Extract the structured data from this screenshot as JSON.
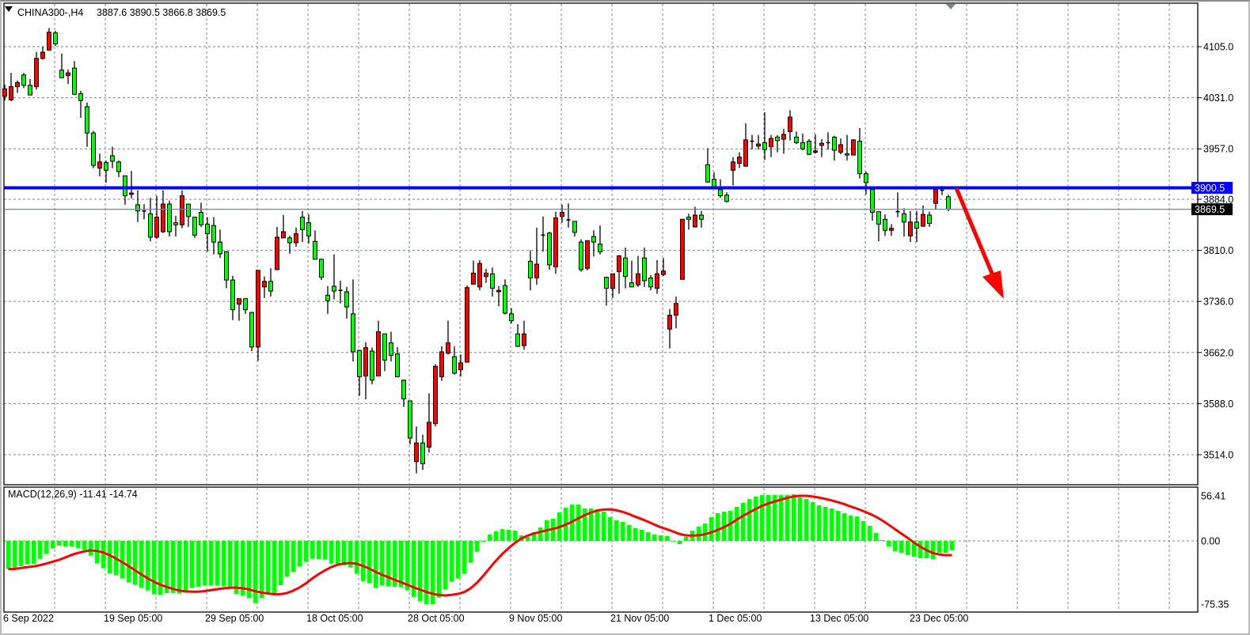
{
  "header": {
    "symbol_timeframe": "CHINA300-,H4",
    "ohlc_readout": "3887.6 3890.5 3866.8 3869.5"
  },
  "price_axis": {
    "labels": [
      "4105.0",
      "4031.0",
      "3957.0",
      "3884.0",
      "3810.0",
      "3736.0",
      "3662.0",
      "3588.0",
      "3514.0"
    ],
    "values": [
      4105,
      4031,
      3957,
      3884,
      3810,
      3736,
      3662,
      3588,
      3514
    ]
  },
  "horizontal_line": {
    "value": 3900.5,
    "label": "3900.5",
    "color": "#0000ff"
  },
  "current_price": {
    "value": 3869.5,
    "label": "3869.5"
  },
  "time_axis": {
    "labels": [
      "6 Sep 2022",
      "19 Sep 05:00",
      "29 Sep 05:00",
      "18 Oct 05:00",
      "28 Oct 05:00",
      "9 Nov 05:00",
      "21 Nov 05:00",
      "1 Dec 05:00",
      "13 Dec 05:00",
      "23 Dec 05:00"
    ]
  },
  "macd": {
    "title": "MACD(12,26,9) -11.41 -14.74",
    "params": [
      12,
      26,
      9
    ],
    "axis_labels": [
      "56.41",
      "0.00",
      "-75.35"
    ],
    "axis_values": [
      56.41,
      0,
      -75.35
    ],
    "main": [
      -34,
      -33.8,
      -30.6,
      -28.3,
      -27.7,
      -21.7,
      -15.9,
      -9.2,
      -5.7,
      -6.7,
      -6.7,
      -8.9,
      -10.8,
      -17.8,
      -27.4,
      -33.1,
      -39.2,
      -41.7,
      -45.5,
      -50.3,
      -53.2,
      -56.7,
      -59.9,
      -64.6,
      -65.6,
      -63.1,
      -63.1,
      -63.7,
      -59.9,
      -56.7,
      -55.7,
      -54.1,
      -54.1,
      -54.1,
      -55.1,
      -55.1,
      -64.3,
      -66.2,
      -69.4,
      -75.2,
      -69.4,
      -63.1,
      -63.1,
      -53.5,
      -43.3,
      -37.6,
      -31.2,
      -25.5,
      -21.7,
      -22,
      -22.6,
      -27.4,
      -28.0,
      -29.6,
      -32.2,
      -39.8,
      -48.7,
      -51.3,
      -57.0,
      -54.1,
      -55.1,
      -55.4,
      -56.1,
      -59.9,
      -67.8,
      -73.2,
      -76.7,
      -76.7,
      -68.5,
      -58.9,
      -49.4,
      -45.5,
      -39.8,
      -26.4,
      -13.1,
      -1.0,
      7.6,
      11.8,
      14.3,
      13.4,
      12.4,
      6.7,
      4.8,
      10.5,
      16.2,
      24.8,
      26.8,
      34.4,
      40.1,
      43.9,
      43.9,
      39.2,
      39.2,
      38.2,
      35.4,
      28.7,
      24.8,
      22.9,
      19.1,
      15.3,
      13.4,
      10.5,
      7.6,
      6.7,
      5.7,
      -0.3,
      -3.8,
      4.8,
      12.4,
      17.2,
      21.0,
      28.7,
      33.4,
      35.4,
      36.3,
      41.1,
      45.9,
      50.6,
      53.5,
      55.4,
      55.4,
      55.4,
      55.4,
      55.4,
      56.4,
      52.5,
      50.6,
      46.8,
      43.0,
      41.1,
      39.2,
      36.3,
      33.4,
      30.6,
      29.6,
      23.9,
      18.2,
      9.6,
      1.0,
      -6.7,
      -12.4,
      -14.3,
      -17.2,
      -19.1,
      -21.0,
      -21.0,
      -22.0,
      -14.3,
      -14.3,
      -11.41
    ],
    "histogram_color": "#00ff00",
    "signal_color": "#ff0000"
  },
  "colors": {
    "bull": "#ff0000",
    "bear": "#00ff00",
    "arrow": "#ff0000"
  },
  "chart_data": {
    "type": "candlestick",
    "title": "CHINA300-,H4",
    "ylim": [
      3480,
      4160
    ],
    "grid": true,
    "ohlc": [
      [
        4033,
        4050,
        4027,
        4044
      ],
      [
        4028,
        4067,
        4026,
        4047
      ],
      [
        4047,
        4056,
        4038,
        4053
      ],
      [
        4064,
        4067,
        4045,
        4049
      ],
      [
        4049,
        4058,
        4035,
        4035
      ],
      [
        4047,
        4097,
        4043,
        4088
      ],
      [
        4088,
        4105,
        4086,
        4097
      ],
      [
        4100,
        4132,
        4100,
        4126
      ],
      [
        4125,
        4128,
        4106,
        4109
      ],
      [
        4071,
        4095,
        4060,
        4060
      ],
      [
        4063,
        4072,
        4051,
        4067
      ],
      [
        4074,
        4084,
        4036,
        4036
      ],
      [
        4037,
        4041,
        4002,
        4027
      ],
      [
        4018,
        4024,
        3960,
        3980
      ],
      [
        3980,
        3983,
        3929,
        3933
      ],
      [
        3929,
        3950,
        3917,
        3938
      ],
      [
        3937,
        3940,
        3908,
        3926
      ],
      [
        3947,
        3960,
        3929,
        3939
      ],
      [
        3938,
        3940,
        3916,
        3924
      ],
      [
        3918,
        3918,
        3876,
        3889
      ],
      [
        3891,
        3925,
        3885,
        3893
      ],
      [
        3876,
        3897,
        3851,
        3867
      ],
      [
        3867,
        3877,
        3855,
        3866
      ],
      [
        3863,
        3886,
        3823,
        3829
      ],
      [
        3829,
        3889,
        3827,
        3858
      ],
      [
        3837,
        3897,
        3835,
        3877
      ],
      [
        3877,
        3882,
        3830,
        3837
      ],
      [
        3850,
        3860,
        3830,
        3847
      ],
      [
        3847,
        3897,
        3842,
        3889
      ],
      [
        3877,
        3877,
        3844,
        3859
      ],
      [
        3858,
        3858,
        3828,
        3832
      ],
      [
        3865,
        3879,
        3844,
        3847
      ],
      [
        3848,
        3858,
        3808,
        3834
      ],
      [
        3846,
        3858,
        3804,
        3822
      ],
      [
        3822,
        3840,
        3799,
        3805
      ],
      [
        3808,
        3809,
        3755,
        3767
      ],
      [
        3767,
        3773,
        3709,
        3724
      ],
      [
        3732,
        3740,
        3708,
        3740
      ],
      [
        3740,
        3740,
        3718,
        3724
      ],
      [
        3720,
        3721,
        3664,
        3670
      ],
      [
        3670,
        3781,
        3650,
        3781
      ],
      [
        3757,
        3772,
        3741,
        3765
      ],
      [
        3765,
        3784,
        3743,
        3751
      ],
      [
        3782,
        3844,
        3782,
        3829
      ],
      [
        3828,
        3861,
        3828,
        3837
      ],
      [
        3828,
        3831,
        3805,
        3821
      ],
      [
        3821,
        3843,
        3815,
        3834
      ],
      [
        3858,
        3867,
        3822,
        3840
      ],
      [
        3850,
        3862,
        3820,
        3831
      ],
      [
        3823,
        3839,
        3797,
        3797
      ],
      [
        3797,
        3798,
        3767,
        3771
      ],
      [
        3745,
        3758,
        3718,
        3737
      ],
      [
        3758,
        3804,
        3739,
        3751
      ],
      [
        3752,
        3766,
        3733,
        3751
      ],
      [
        3750,
        3757,
        3711,
        3728
      ],
      [
        3718,
        3768,
        3649,
        3663
      ],
      [
        3665,
        3666,
        3599,
        3627
      ],
      [
        3628,
        3677,
        3594,
        3669
      ],
      [
        3664,
        3669,
        3616,
        3622
      ],
      [
        3628,
        3708,
        3628,
        3692
      ],
      [
        3689,
        3689,
        3635,
        3651
      ],
      [
        3676,
        3692,
        3649,
        3658
      ],
      [
        3660,
        3670,
        3626,
        3627
      ],
      [
        3622,
        3623,
        3583,
        3595
      ],
      [
        3592,
        3592,
        3529,
        3538
      ],
      [
        3504,
        3555,
        3487,
        3531
      ],
      [
        3531,
        3543,
        3492,
        3501
      ],
      [
        3525,
        3603,
        3517,
        3561
      ],
      [
        3559,
        3645,
        3555,
        3642
      ],
      [
        3627,
        3671,
        3621,
        3663
      ],
      [
        3661,
        3708,
        3659,
        3676
      ],
      [
        3656,
        3671,
        3630,
        3632
      ],
      [
        3637,
        3659,
        3627,
        3647
      ],
      [
        3648,
        3759,
        3648,
        3756
      ],
      [
        3761,
        3795,
        3761,
        3777
      ],
      [
        3757,
        3796,
        3752,
        3791
      ],
      [
        3772,
        3783,
        3763,
        3777
      ],
      [
        3776,
        3785,
        3743,
        3755
      ],
      [
        3750,
        3758,
        3729,
        3752
      ],
      [
        3759,
        3768,
        3717,
        3719
      ],
      [
        3718,
        3726,
        3704,
        3708
      ],
      [
        3689,
        3703,
        3670,
        3671
      ],
      [
        3672,
        3708,
        3666,
        3689
      ],
      [
        3794,
        3810,
        3752,
        3770
      ],
      [
        3770,
        3843,
        3760,
        3790
      ],
      [
        3832,
        3859,
        3808,
        3831
      ],
      [
        3835,
        3837,
        3782,
        3789
      ],
      [
        3786,
        3866,
        3776,
        3857
      ],
      [
        3859,
        3876,
        3850,
        3865
      ],
      [
        3854,
        3878,
        3843,
        3853
      ],
      [
        3852,
        3852,
        3830,
        3836
      ],
      [
        3822,
        3826,
        3779,
        3782
      ],
      [
        3784,
        3824,
        3781,
        3824
      ],
      [
        3830,
        3839,
        3801,
        3822
      ],
      [
        3819,
        3846,
        3804,
        3808
      ],
      [
        3771,
        3771,
        3730,
        3755
      ],
      [
        3755,
        3776,
        3741,
        3776
      ],
      [
        3779,
        3803,
        3747,
        3802
      ],
      [
        3799,
        3814,
        3755,
        3772
      ],
      [
        3763,
        3795,
        3757,
        3757
      ],
      [
        3760,
        3802,
        3757,
        3776
      ],
      [
        3799,
        3814,
        3757,
        3766
      ],
      [
        3770,
        3774,
        3752,
        3757
      ],
      [
        3755,
        3796,
        3747,
        3776
      ],
      [
        3775,
        3799,
        3773,
        3780
      ],
      [
        3696,
        3725,
        3668,
        3716
      ],
      [
        3716,
        3743,
        3697,
        3733
      ],
      [
        3768,
        3855,
        3768,
        3855
      ],
      [
        3858,
        3863,
        3840,
        3855
      ],
      [
        3844,
        3873,
        3843,
        3861
      ],
      [
        3861,
        3867,
        3843,
        3855
      ],
      [
        3934,
        3958,
        3908,
        3909
      ],
      [
        3913,
        3923,
        3902,
        3902
      ],
      [
        3898,
        3913,
        3886,
        3889
      ],
      [
        3890,
        3894,
        3879,
        3881
      ],
      [
        3926,
        3945,
        3904,
        3938
      ],
      [
        3936,
        3952,
        3929,
        3945
      ],
      [
        3932,
        3994,
        3931,
        3970
      ],
      [
        3968,
        3977,
        3956,
        3967
      ],
      [
        3961,
        3977,
        3956,
        3964
      ],
      [
        3966,
        4010,
        3941,
        3956
      ],
      [
        3960,
        3977,
        3945,
        3972
      ],
      [
        3974,
        3977,
        3952,
        3969
      ],
      [
        3971,
        3986,
        3950,
        3978
      ],
      [
        3982,
        4013,
        3969,
        4003
      ],
      [
        3974,
        3982,
        3964,
        3966
      ],
      [
        3966,
        3979,
        3955,
        3957
      ],
      [
        3968,
        3971,
        3948,
        3949
      ],
      [
        3952,
        3978,
        3950,
        3954
      ],
      [
        3962,
        3971,
        3945,
        3965
      ],
      [
        3966,
        3981,
        3956,
        3966
      ],
      [
        3974,
        3976,
        3940,
        3955
      ],
      [
        3952,
        3972,
        3949,
        3963
      ],
      [
        3950,
        3977,
        3940,
        3948
      ],
      [
        3948,
        3971,
        3948,
        3970
      ],
      [
        3968,
        3987,
        3914,
        3921
      ],
      [
        3921,
        3924,
        3891,
        3908
      ],
      [
        3898,
        3898,
        3853,
        3865
      ],
      [
        3866,
        3866,
        3823,
        3848
      ],
      [
        3855,
        3862,
        3831,
        3839
      ],
      [
        3839,
        3848,
        3831,
        3842
      ],
      [
        3866,
        3894,
        3858,
        3865
      ],
      [
        3863,
        3871,
        3830,
        3851
      ],
      [
        3831,
        3867,
        3822,
        3851
      ],
      [
        3851,
        3867,
        3822,
        3842
      ],
      [
        3845,
        3875,
        3844,
        3862
      ],
      [
        3861,
        3866,
        3844,
        3849
      ],
      [
        3878,
        3898,
        3870,
        3898
      ],
      [
        3897,
        3903,
        3890,
        3896
      ],
      [
        3887.6,
        3890.5,
        3866.8,
        3869.5
      ]
    ]
  }
}
